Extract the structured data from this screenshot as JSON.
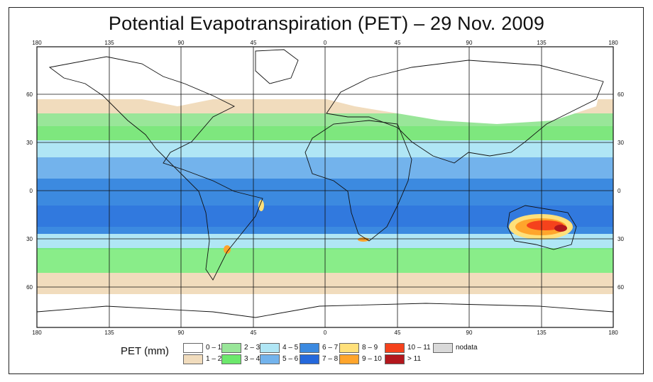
{
  "title": "Potential Evapotranspiration (PET) – 29 Nov. 2009",
  "axes": {
    "top_lon_ticks": [
      "180",
      "135",
      "90",
      "45",
      "0",
      "45",
      "90",
      "135",
      "180"
    ],
    "bottom_lon_ticks": [
      "180",
      "135",
      "90",
      "45",
      "0",
      "45",
      "90",
      "135",
      "180"
    ],
    "left_lat_ticks": [
      "60",
      "30",
      "0",
      "30",
      "60"
    ],
    "right_lat_ticks": [
      "60",
      "30",
      "0",
      "30",
      "60"
    ]
  },
  "legend": {
    "title": "PET (mm)",
    "items": [
      {
        "label": "0 – 1",
        "color": "#ffffff"
      },
      {
        "label": "1 – 2",
        "color": "#f1dcbd"
      },
      {
        "label": "2 – 3",
        "color": "#99e699"
      },
      {
        "label": "3 – 4",
        "color": "#6ce86c"
      },
      {
        "label": "4 – 5",
        "color": "#b0e6f5"
      },
      {
        "label": "5 – 6",
        "color": "#73b3ec"
      },
      {
        "label": "6 – 7",
        "color": "#3c8ae0"
      },
      {
        "label": "7 – 8",
        "color": "#2568db"
      },
      {
        "label": "8 – 9",
        "color": "#ffe07a"
      },
      {
        "label": "9 – 10",
        "color": "#ffa52c"
      },
      {
        "label": "10 – 11",
        "color": "#f5421c"
      },
      {
        "label": "> 11",
        "color": "#b3171d"
      },
      {
        "label": "nodata",
        "color": "#d9d9d9"
      }
    ]
  }
}
